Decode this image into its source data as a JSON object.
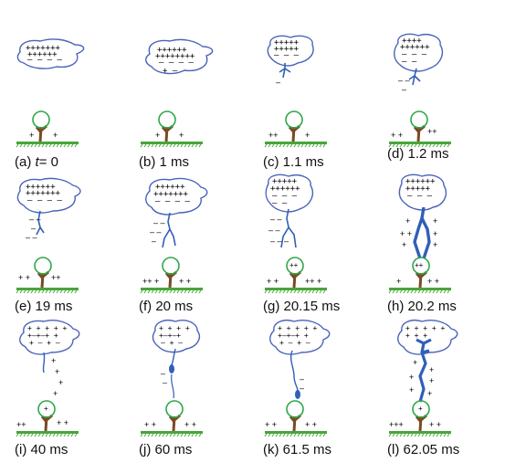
{
  "colors": {
    "cloud": "#4a63b8",
    "leader": "#2f5fb8",
    "tree_crown": "#2fa84a",
    "trunk": "#7a4a22",
    "ground": "#4aa53c",
    "charge": "#000000"
  },
  "panels": [
    {
      "id": "a",
      "label": "(a)",
      "t_prefix": "t",
      "t_value": "= 0",
      "caption": "(a) t = 0"
    },
    {
      "id": "b",
      "label": "(b)",
      "caption": "(b) 1 ms"
    },
    {
      "id": "c",
      "label": "(c)",
      "caption": "(c) 1.1 ms"
    },
    {
      "id": "d",
      "label": "(d)",
      "caption": "(d) 1.2 ms"
    },
    {
      "id": "e",
      "label": "(e)",
      "caption": "(e) 19 ms"
    },
    {
      "id": "f",
      "label": "(f)",
      "caption": "(f) 20 ms"
    },
    {
      "id": "g",
      "label": "(g)",
      "caption": "(g) 20.15 ms"
    },
    {
      "id": "h",
      "label": "(h)",
      "caption": "(h) 20.2 ms"
    },
    {
      "id": "i",
      "label": "(i)",
      "caption": "(i) 40 ms"
    },
    {
      "id": "j",
      "label": "(j)",
      "caption": "(j) 60 ms"
    },
    {
      "id": "k",
      "label": "(k)",
      "caption": "(k) 61.5 ms"
    },
    {
      "id": "l",
      "label": "(l)",
      "caption": "(l) 62.05 ms"
    }
  ]
}
